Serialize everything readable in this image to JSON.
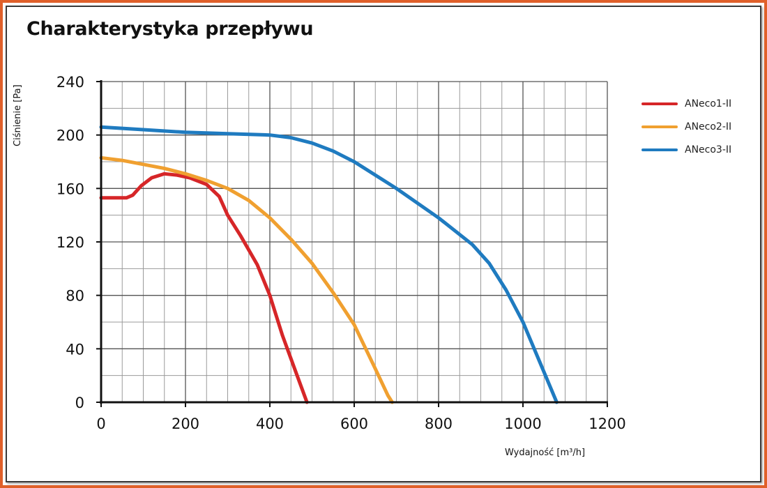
{
  "title": "Charakterystyka przepływu",
  "frame_color": "#e0602a",
  "chart_data": {
    "type": "line",
    "title": "Charakterystyka przepływu",
    "ylabel": "Ciśnienie [Pa]",
    "xlabel_text": "Wydajność ",
    "xlabel_unit": "[m³/h]",
    "xlim": [
      0,
      1200
    ],
    "ylim": [
      0,
      240
    ],
    "x_major_ticks": [
      0,
      200,
      400,
      600,
      800,
      1000,
      1200
    ],
    "y_major_ticks": [
      0,
      40,
      80,
      120,
      160,
      200,
      240
    ],
    "grid": true,
    "legend_position": "right",
    "series": [
      {
        "name": "ANeco1-II",
        "color": "#d62628",
        "x": [
          0,
          30,
          60,
          75,
          95,
          120,
          150,
          180,
          210,
          250,
          280,
          300,
          330,
          370,
          400,
          430,
          460,
          488
        ],
        "y": [
          153,
          153,
          153,
          155,
          162,
          168,
          171,
          170,
          168,
          163,
          154,
          140,
          125,
          103,
          80,
          50,
          24,
          0
        ]
      },
      {
        "name": "ANeco2-II",
        "color": "#f0a030",
        "x": [
          0,
          50,
          100,
          150,
          200,
          250,
          300,
          350,
          400,
          450,
          500,
          550,
          600,
          650,
          680,
          690
        ],
        "y": [
          183,
          181,
          178,
          175,
          171,
          166,
          160,
          151,
          138,
          122,
          104,
          82,
          58,
          25,
          5,
          0
        ]
      },
      {
        "name": "ANeco3-II",
        "color": "#1f7bc0",
        "x": [
          0,
          50,
          100,
          200,
          300,
          400,
          450,
          500,
          550,
          600,
          700,
          800,
          880,
          920,
          960,
          1000,
          1040,
          1080
        ],
        "y": [
          206,
          205,
          204,
          202,
          201,
          200,
          198,
          194,
          188,
          180,
          160,
          138,
          118,
          104,
          84,
          60,
          30,
          0
        ]
      }
    ]
  }
}
